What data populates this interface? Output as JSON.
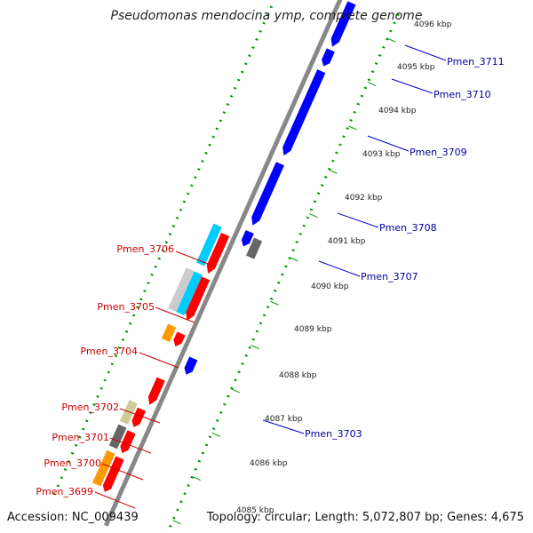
{
  "title": "Pseudomonas mendocina ymp, complete genome",
  "footer": {
    "accession": "Accession: NC_009439",
    "topology": "Topology: circular; Length: 5,072,807 bp; Genes: 4,675"
  },
  "ticks": [
    "4085 kbp",
    "4086 kbp",
    "4087 kbp",
    "4088 kbp",
    "4089 kbp",
    "4090 kbp",
    "4091 kbp",
    "4092 kbp",
    "4093 kbp",
    "4094 kbp",
    "4095 kbp",
    "4096 kbp"
  ],
  "labels_left": [
    "Pmen_3706",
    "Pmen_3705",
    "Pmen_3704",
    "Pmen_3702",
    "Pmen_3701",
    "Pmen_3700",
    "Pmen_3699"
  ],
  "labels_right": [
    "Pmen_3711",
    "Pmen_3710",
    "Pmen_3709",
    "Pmen_3708",
    "Pmen_3707",
    "Pmen_3703"
  ],
  "colors": {
    "forward_cds": "#ff0000",
    "reverse_cds": "#0000ff",
    "rna": "#00ccff",
    "pseudo": "#cccccc",
    "misc_olive": "#cccc99",
    "misc_dark": "#666666",
    "misc_orange": "#ff9900",
    "track_grid": "#009900",
    "backbone": "#888888"
  }
}
